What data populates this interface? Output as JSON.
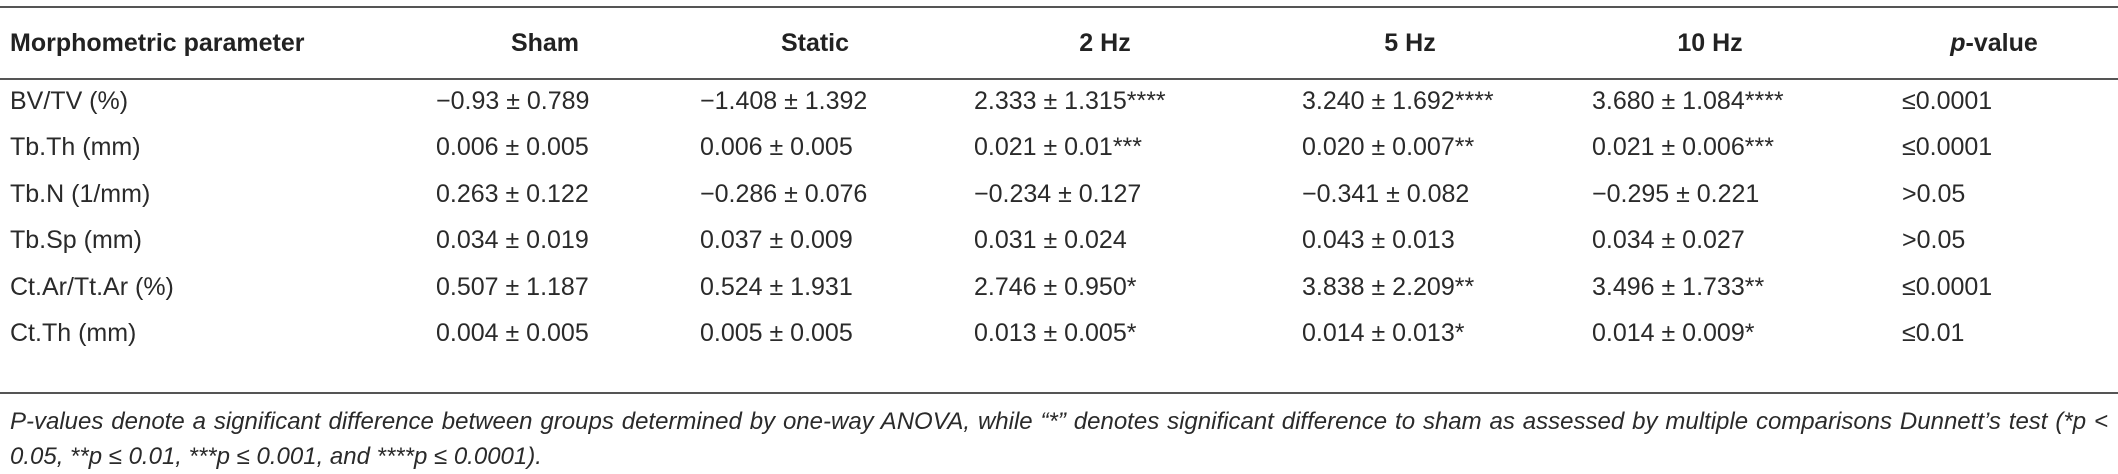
{
  "table": {
    "headers": {
      "param": "Morphometric parameter",
      "sham": "Sham",
      "static": "Static",
      "hz2": "2 Hz",
      "hz5": "5 Hz",
      "hz10": "10 Hz",
      "p_italic": "p",
      "p_rest": "-value"
    },
    "rows": [
      {
        "param": "BV/TV (%)",
        "sham": "−0.93 ± 0.789",
        "static": "−1.408 ± 1.392",
        "hz2": "2.333 ± 1.315****",
        "hz5": "3.240 ± 1.692****",
        "hz10": "3.680 ± 1.084****",
        "p": "≤0.0001"
      },
      {
        "param": "Tb.Th (mm)",
        "sham": "0.006 ± 0.005",
        "static": "0.006 ± 0.005",
        "hz2": "0.021 ± 0.01***",
        "hz5": "0.020 ± 0.007**",
        "hz10": "0.021 ± 0.006***",
        "p": "≤0.0001"
      },
      {
        "param": "Tb.N (1/mm)",
        "sham": "0.263 ± 0.122",
        "static": "−0.286 ± 0.076",
        "hz2": "−0.234 ± 0.127",
        "hz5": "−0.341 ± 0.082",
        "hz10": "−0.295 ± 0.221",
        "p": ">0.05"
      },
      {
        "param": "Tb.Sp (mm)",
        "sham": "0.034 ± 0.019",
        "static": "0.037 ± 0.009",
        "hz2": "0.031 ± 0.024",
        "hz5": "0.043 ± 0.013",
        "hz10": "0.034 ± 0.027",
        "p": ">0.05"
      },
      {
        "param": "Ct.Ar/Tt.Ar (%)",
        "sham": "0.507 ± 1.187",
        "static": "0.524 ± 1.931",
        "hz2": "2.746 ± 0.950*",
        "hz5": "3.838 ± 2.209**",
        "hz10": "3.496 ± 1.733**",
        "p": "≤0.0001"
      },
      {
        "param": "Ct.Th (mm)",
        "sham": "0.004 ± 0.005",
        "static": "0.005 ± 0.005",
        "hz2": "0.013 ± 0.005*",
        "hz5": "0.014 ± 0.013*",
        "hz10": "0.014 ± 0.009*",
        "p": "≤0.01"
      }
    ]
  },
  "footnote": "P-values denote a significant difference between groups determined by one-way ANOVA, while “*” denotes significant difference to sham as assessed by multiple comparisons Dunnett’s test (*p < 0.05, **p ≤ 0.01, ***p ≤ 0.001, and ****p ≤ 0.0001)."
}
